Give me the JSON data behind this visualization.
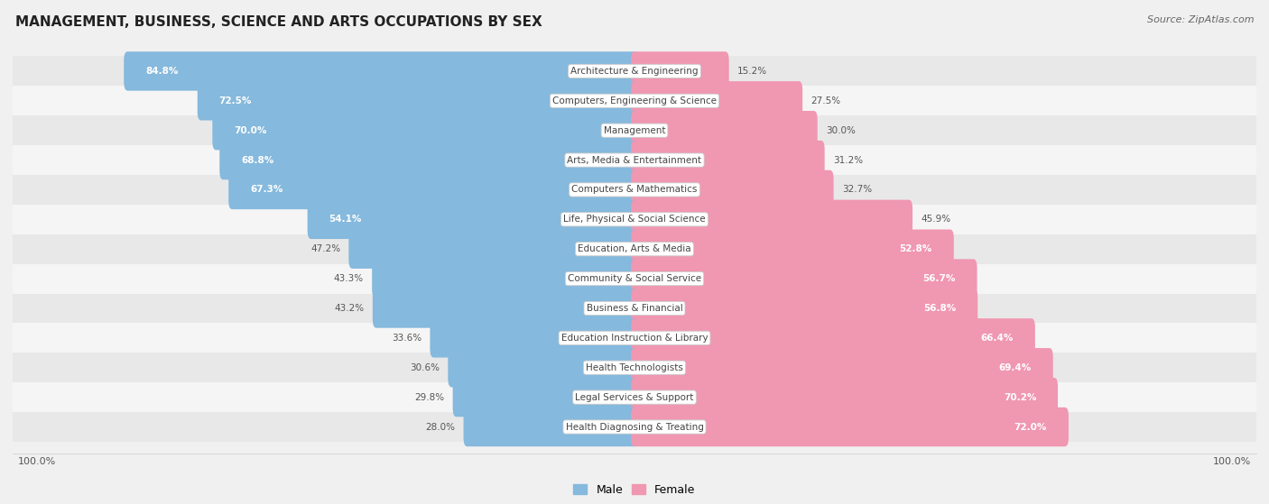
{
  "title": "MANAGEMENT, BUSINESS, SCIENCE AND ARTS OCCUPATIONS BY SEX",
  "source": "Source: ZipAtlas.com",
  "categories": [
    "Architecture & Engineering",
    "Computers, Engineering & Science",
    "Management",
    "Arts, Media & Entertainment",
    "Computers & Mathematics",
    "Life, Physical & Social Science",
    "Education, Arts & Media",
    "Community & Social Service",
    "Business & Financial",
    "Education Instruction & Library",
    "Health Technologists",
    "Legal Services & Support",
    "Health Diagnosing & Treating"
  ],
  "male_pct": [
    84.8,
    72.5,
    70.0,
    68.8,
    67.3,
    54.1,
    47.2,
    43.3,
    43.2,
    33.6,
    30.6,
    29.8,
    28.0
  ],
  "female_pct": [
    15.2,
    27.5,
    30.0,
    31.2,
    32.7,
    45.9,
    52.8,
    56.7,
    56.8,
    66.4,
    69.4,
    70.2,
    72.0
  ],
  "male_color": "#85b9dd",
  "female_color": "#f097b2",
  "bg_color": "#f0f0f0",
  "row_bg_even": "#e8e8e8",
  "row_bg_odd": "#f5f5f5",
  "title_fontsize": 11,
  "label_fontsize": 7.5,
  "pct_fontsize": 7.5,
  "legend_fontsize": 9,
  "source_fontsize": 8
}
